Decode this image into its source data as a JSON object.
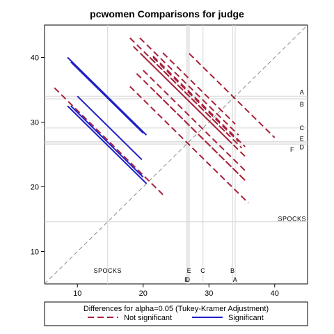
{
  "chart_data": {
    "type": "line",
    "title": "pcwomen Comparisons for judge",
    "xlim": [
      5,
      45
    ],
    "ylim": [
      5,
      45
    ],
    "x_ticks": [
      10,
      20,
      30,
      40
    ],
    "y_ticks": [
      10,
      20,
      30,
      40
    ],
    "reference_diagonal": true,
    "groups": [
      {
        "label": "A",
        "mean": 34.0
      },
      {
        "label": "B",
        "mean": 33.6
      },
      {
        "label": "C",
        "mean": 29.1
      },
      {
        "label": "D",
        "mean": 26.8
      },
      {
        "label": "E",
        "mean": 27.0
      },
      {
        "label": "F",
        "mean": 26.6
      },
      {
        "label": "SPOCKS",
        "mean": 14.6
      }
    ],
    "x_axis_labels": [
      {
        "text": "SPOCKS",
        "x": 14.6,
        "row": 1
      },
      {
        "text": "E",
        "x": 27.0,
        "row": 1
      },
      {
        "text": "C",
        "x": 29.1,
        "row": 1
      },
      {
        "text": "B",
        "x": 33.6,
        "row": 1
      },
      {
        "text": "F",
        "x": 26.6,
        "row": 2
      },
      {
        "text": "D",
        "x": 26.8,
        "row": 2
      },
      {
        "text": "A",
        "x": 34.0,
        "row": 2
      }
    ],
    "y_axis_labels": [
      {
        "text": "A",
        "y": 34.0
      },
      {
        "text": "B",
        "y": 33.6
      },
      {
        "text": "C",
        "y": 29.1
      },
      {
        "text": "E",
        "y": 27.0
      },
      {
        "text": "D",
        "y": 26.8
      },
      {
        "text": "F",
        "y": 26.6
      },
      {
        "text": "SPOCKS",
        "y": 14.6
      }
    ],
    "series": [
      {
        "name": "Not significant",
        "color": "#a8203a",
        "dash": "dashed",
        "segments": [
          [
            [
              6.5,
              35.3
            ],
            [
              23,
              18.8
            ]
          ],
          [
            [
              18,
              43
            ],
            [
              33,
              28
            ]
          ],
          [
            [
              18.5,
              41.7
            ],
            [
              33.5,
              26.7
            ]
          ],
          [
            [
              23,
              40.7
            ],
            [
              34,
              29.7
            ]
          ],
          [
            [
              27,
              40.6
            ],
            [
              40,
              27.6
            ]
          ],
          [
            [
              19.5,
              43
            ],
            [
              34.5,
              28
            ]
          ],
          [
            [
              21.5,
              40.2
            ],
            [
              35.5,
              26.2
            ]
          ],
          [
            [
              20,
              40.2
            ],
            [
              35.5,
              24.7
            ]
          ],
          [
            [
              21,
              40
            ],
            [
              35,
              26
            ]
          ],
          [
            [
              21.5,
              40
            ],
            [
              34.5,
              27
            ]
          ],
          [
            [
              19,
              37.5
            ],
            [
              35.5,
              21
            ]
          ],
          [
            [
              18,
              35.5
            ],
            [
              36,
              17.5
            ]
          ],
          [
            [
              22,
              34.5
            ],
            [
              35.5,
              21
            ]
          ],
          [
            [
              20,
              38
            ],
            [
              35.5,
              22.5
            ]
          ]
        ]
      },
      {
        "name": "Significant",
        "color": "#2020c8",
        "dash": "solid",
        "segments": [
          [
            [
              8.5,
              40
            ],
            [
              20.5,
              28
            ]
          ],
          [
            [
              9,
              39.3
            ],
            [
              20,
              28.3
            ]
          ],
          [
            [
              10,
              34
            ],
            [
              19.8,
              24.2
            ]
          ],
          [
            [
              8.5,
              32.5
            ],
            [
              20.5,
              20.5
            ]
          ],
          [
            [
              9,
              32.5
            ],
            [
              20,
              21.5
            ]
          ]
        ]
      }
    ],
    "legend": {
      "title": "Differences for alpha=0.05 (Tukey-Kramer Adjustment)",
      "position": "bottom",
      "entries": [
        {
          "label": "Not significant",
          "color": "#a8203a",
          "dash": "dashed"
        },
        {
          "label": "Significant",
          "color": "#2020c8",
          "dash": "solid"
        }
      ]
    }
  }
}
